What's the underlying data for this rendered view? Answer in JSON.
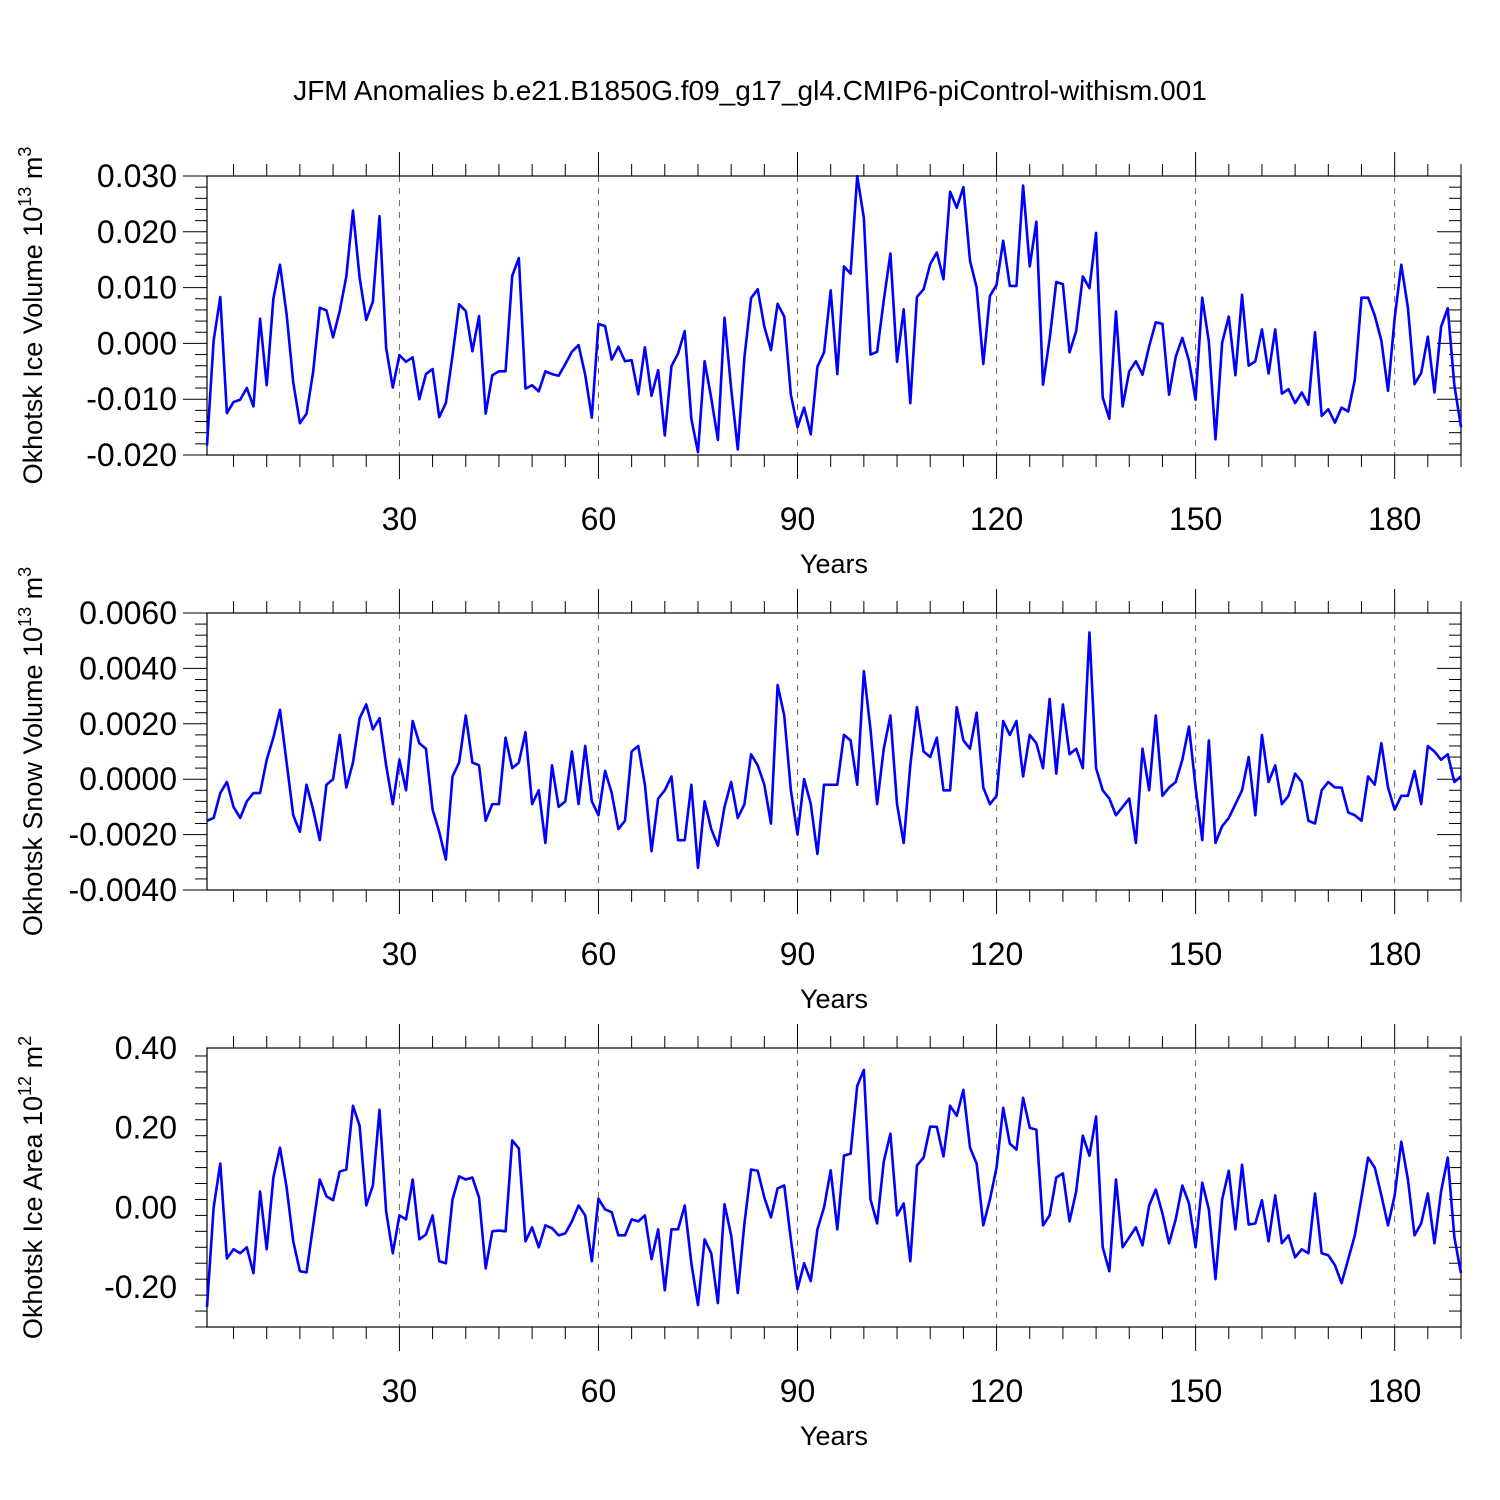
{
  "title": "JFM Anomalies b.e21.B1850G.f09_g17_gl4.CMIP6-piControl-withism.001",
  "chart_data": [
    {
      "type": "line",
      "ylabel": "Okhotsk Ice Volume",
      "ylabel_unit": "10",
      "ylabel_exp": "13",
      "ylabel_unit2": "m",
      "ylabel_unit2_exp": "3",
      "xlabel": "Years",
      "xlim": [
        1,
        190
      ],
      "ylim": [
        -0.02,
        0.03
      ],
      "xticks": [
        30,
        60,
        90,
        120,
        150,
        180
      ],
      "xtick_labels": [
        "30",
        "60",
        "90",
        "120",
        "150",
        "180"
      ],
      "yticks": [
        -0.02,
        -0.01,
        0.0,
        0.01,
        0.02,
        0.03
      ],
      "ytick_labels": [
        "-0.020",
        "-0.010",
        "0.000",
        "0.010",
        "0.020",
        "0.030"
      ],
      "grid": "dashed vertical at major x ticks",
      "series": [
        {
          "name": "Okhotsk Ice Volume",
          "values": [
            -0.0183,
            0.0005,
            0.0083,
            -0.0125,
            -0.0105,
            -0.0101,
            -0.008,
            -0.0113,
            0.0044,
            -0.0075,
            0.008,
            0.0141,
            0.0052,
            -0.007,
            -0.0143,
            -0.0126,
            -0.0051,
            0.0064,
            0.0059,
            0.0011,
            0.0058,
            0.012,
            0.0238,
            0.0118,
            0.0042,
            0.0075,
            0.0228,
            -0.0008,
            -0.0079,
            -0.0021,
            -0.0033,
            -0.0025,
            -0.01,
            -0.0055,
            -0.0046,
            -0.0132,
            -0.0107,
            -0.0022,
            0.007,
            0.0058,
            -0.0014,
            0.0049,
            -0.0126,
            -0.0057,
            -0.005,
            -0.005,
            0.0121,
            0.0153,
            -0.0081,
            -0.0075,
            -0.0086,
            -0.005,
            -0.0055,
            -0.0058,
            -0.0037,
            -0.0015,
            -0.0003,
            -0.0056,
            -0.0133,
            0.0035,
            0.0031,
            -0.0029,
            -0.0006,
            -0.0032,
            -0.003,
            -0.0091,
            -0.0007,
            -0.0094,
            -0.0048,
            -0.0165,
            -0.0041,
            -0.0018,
            0.0022,
            -0.0135,
            -0.0195,
            -0.0032,
            -0.0098,
            -0.0173,
            0.0046,
            -0.0081,
            -0.019,
            -0.0025,
            0.0081,
            0.0097,
            0.003,
            -0.0012,
            0.0071,
            0.0048,
            -0.0092,
            -0.015,
            -0.0115,
            -0.0163,
            -0.0042,
            -0.0016,
            0.0095,
            -0.0055,
            0.0138,
            0.0125,
            0.03,
            0.0225,
            -0.002,
            -0.0015,
            0.0077,
            0.0161,
            -0.0033,
            0.0061,
            -0.0107,
            0.0083,
            0.0097,
            0.0142,
            0.0163,
            0.0115,
            0.0272,
            0.0243,
            0.028,
            0.0148,
            0.01,
            -0.0037,
            0.0085,
            0.0105,
            0.0184,
            0.0103,
            0.0103,
            0.0283,
            0.0138,
            0.0218,
            -0.0074,
            0.0008,
            0.011,
            0.0106,
            -0.0016,
            0.0022,
            0.012,
            0.0099,
            0.0198,
            -0.0097,
            -0.0135,
            0.0057,
            -0.0113,
            -0.005,
            -0.0032,
            -0.0056,
            -0.0005,
            0.0038,
            0.0035,
            -0.0092,
            -0.0024,
            0.001,
            -0.0031,
            -0.0101,
            0.0082,
            0.0003,
            -0.0172,
            0.0001,
            0.0048,
            -0.0057,
            0.0087,
            -0.004,
            -0.0032,
            0.0025,
            -0.0054,
            0.0025,
            -0.009,
            -0.0082,
            -0.0107,
            -0.0088,
            -0.011,
            0.002,
            -0.013,
            -0.0118,
            -0.0142,
            -0.0115,
            -0.0122,
            -0.0065,
            0.0082,
            0.0082,
            0.005,
            0.0005,
            -0.0085,
            0.0045,
            0.0141,
            0.0064,
            -0.0073,
            -0.0053,
            0.0012,
            -0.0088,
            0.003,
            0.0063,
            -0.0075,
            -0.015
          ]
        }
      ]
    },
    {
      "type": "line",
      "ylabel": "Okhotsk Snow Volume",
      "ylabel_unit": "10",
      "ylabel_exp": "13",
      "ylabel_unit2": "m",
      "ylabel_unit2_exp": "3",
      "xlabel": "Years",
      "xlim": [
        1,
        190
      ],
      "ylim": [
        -0.004,
        0.006
      ],
      "xticks": [
        30,
        60,
        90,
        120,
        150,
        180
      ],
      "xtick_labels": [
        "30",
        "60",
        "90",
        "120",
        "150",
        "180"
      ],
      "yticks": [
        -0.004,
        -0.002,
        0.0,
        0.002,
        0.004,
        0.006
      ],
      "ytick_labels": [
        "-0.0040",
        "-0.0020",
        "0.0000",
        "0.0020",
        "0.0040",
        "0.0060"
      ],
      "grid": "dashed vertical at major x ticks",
      "series": [
        {
          "name": "Okhotsk Snow Volume",
          "values": [
            -0.0015,
            -0.0014,
            -0.0005,
            -0.0001,
            -0.001,
            -0.0014,
            -0.0008,
            -0.0005,
            -0.0005,
            0.0007,
            0.0015,
            0.0025,
            0.0006,
            -0.0013,
            -0.0019,
            -0.0002,
            -0.0011,
            -0.0022,
            -0.0002,
            0.0,
            0.0016,
            -0.0003,
            0.0006,
            0.0022,
            0.0027,
            0.0018,
            0.0022,
            0.0005,
            -0.0009,
            0.0007,
            -0.0004,
            0.0021,
            0.0013,
            0.0011,
            -0.0011,
            -0.0019,
            -0.0029,
            0.0001,
            0.0006,
            0.0023,
            0.0006,
            0.0005,
            -0.0015,
            -0.0009,
            -0.0009,
            0.0015,
            0.0004,
            0.0006,
            0.0017,
            -0.0009,
            -0.0004,
            -0.0023,
            0.0005,
            -0.001,
            -0.0008,
            0.001,
            -0.0009,
            0.0012,
            -0.0008,
            -0.0013,
            0.0003,
            -0.0005,
            -0.0018,
            -0.0015,
            0.001,
            0.0012,
            -0.0002,
            -0.0026,
            -0.0007,
            -0.0004,
            0.0001,
            -0.0022,
            -0.0022,
            -0.0002,
            -0.0032,
            -0.0008,
            -0.0018,
            -0.0024,
            -0.001,
            -0.0001,
            -0.0014,
            -0.0009,
            0.0009,
            0.0005,
            -0.0002,
            -0.0016,
            0.0034,
            0.0023,
            -0.0004,
            -0.002,
            0.0,
            -0.0009,
            -0.0027,
            -0.0002,
            -0.0002,
            -0.0002,
            0.0016,
            0.0014,
            -0.0002,
            0.0039,
            0.0018,
            -0.0009,
            0.0011,
            0.0023,
            -0.0009,
            -0.0023,
            0.0005,
            0.0026,
            0.001,
            0.0008,
            0.0015,
            -0.0004,
            -0.0004,
            0.0026,
            0.0014,
            0.0011,
            0.0024,
            -0.0003,
            -0.0009,
            -0.0006,
            0.0021,
            0.0016,
            0.0021,
            0.0001,
            0.0016,
            0.0013,
            0.0004,
            0.0029,
            0.0002,
            0.0027,
            0.0009,
            0.0011,
            0.0004,
            0.0053,
            0.0004,
            -0.0004,
            -0.0007,
            -0.0013,
            -0.001,
            -0.0007,
            -0.0023,
            0.0011,
            -0.0004,
            0.0023,
            -0.0006,
            -0.0003,
            -0.0001,
            0.0007,
            0.0019,
            -0.0003,
            -0.0022,
            0.0014,
            -0.0023,
            -0.0017,
            -0.0014,
            -0.0009,
            -0.0004,
            0.0008,
            -0.0013,
            0.0016,
            -0.0001,
            0.0005,
            -0.0009,
            -0.0006,
            0.0002,
            -0.0001,
            -0.0015,
            -0.0016,
            -0.0004,
            -0.0001,
            -0.0003,
            -0.0003,
            -0.0012,
            -0.0013,
            -0.0015,
            0.0001,
            -0.0002,
            0.0013,
            -0.0003,
            -0.0011,
            -0.0006,
            -0.0006,
            0.0003,
            -0.0009,
            0.0012,
            0.001,
            0.0007,
            0.0009,
            -0.0001,
            0.0001
          ]
        }
      ]
    },
    {
      "type": "line",
      "ylabel": "Okhotsk Ice Area",
      "ylabel_unit": "10",
      "ylabel_exp": "12",
      "ylabel_unit2": "m",
      "ylabel_unit2_exp": "2",
      "xlabel": "Years",
      "xlim": [
        1,
        190
      ],
      "ylim": [
        -0.3,
        0.4
      ],
      "xticks": [
        30,
        60,
        90,
        120,
        150,
        180
      ],
      "xtick_labels": [
        "30",
        "60",
        "90",
        "120",
        "150",
        "180"
      ],
      "yticks": [
        -0.2,
        0.0,
        0.2,
        0.4
      ],
      "ytick_labels": [
        "-0.20",
        "0.00",
        "0.20",
        "0.40"
      ],
      "grid": "dashed vertical at major x ticks",
      "series": [
        {
          "name": "Okhotsk Ice Area",
          "values": [
            -0.25,
            0.0,
            0.11,
            -0.128,
            -0.105,
            -0.115,
            -0.1,
            -0.165,
            0.04,
            -0.105,
            0.075,
            0.15,
            0.05,
            -0.085,
            -0.16,
            -0.163,
            -0.045,
            0.07,
            0.028,
            0.018,
            0.09,
            0.095,
            0.255,
            0.205,
            0.005,
            0.055,
            0.245,
            -0.01,
            -0.115,
            -0.02,
            -0.03,
            0.07,
            -0.08,
            -0.068,
            -0.02,
            -0.135,
            -0.14,
            0.02,
            0.078,
            0.07,
            0.075,
            0.025,
            -0.153,
            -0.06,
            -0.058,
            -0.06,
            0.168,
            0.148,
            -0.085,
            -0.05,
            -0.1,
            -0.045,
            -0.052,
            -0.07,
            -0.065,
            -0.035,
            0.005,
            -0.02,
            -0.135,
            0.022,
            -0.005,
            -0.012,
            -0.07,
            -0.07,
            -0.03,
            -0.035,
            -0.02,
            -0.13,
            -0.055,
            -0.208,
            -0.055,
            -0.055,
            0.005,
            -0.14,
            -0.245,
            -0.08,
            -0.115,
            -0.24,
            0.008,
            -0.07,
            -0.215,
            -0.04,
            0.095,
            0.092,
            0.025,
            -0.025,
            0.048,
            0.055,
            -0.08,
            -0.205,
            -0.14,
            -0.185,
            -0.055,
            0.0,
            0.093,
            -0.055,
            0.13,
            0.135,
            0.305,
            0.345,
            0.02,
            -0.04,
            0.115,
            0.185,
            -0.02,
            0.01,
            -0.135,
            0.105,
            0.125,
            0.203,
            0.202,
            0.128,
            0.255,
            0.23,
            0.295,
            0.15,
            0.11,
            -0.045,
            0.02,
            0.1,
            0.25,
            0.16,
            0.145,
            0.275,
            0.2,
            0.195,
            -0.045,
            -0.02,
            0.075,
            0.085,
            -0.035,
            0.04,
            0.18,
            0.13,
            0.228,
            -0.1,
            -0.16,
            0.07,
            -0.1,
            -0.075,
            -0.05,
            -0.095,
            0.005,
            0.045,
            -0.015,
            -0.09,
            -0.03,
            0.055,
            0.01,
            -0.1,
            0.062,
            -0.005,
            -0.18,
            0.02,
            0.092,
            -0.055,
            0.107,
            -0.043,
            -0.04,
            0.018,
            -0.085,
            0.03,
            -0.09,
            -0.07,
            -0.125,
            -0.105,
            -0.115,
            0.035,
            -0.115,
            -0.12,
            -0.145,
            -0.19,
            -0.13,
            -0.07,
            0.025,
            0.125,
            0.1,
            0.03,
            -0.045,
            0.03,
            0.165,
            0.07,
            -0.07,
            -0.04,
            0.035,
            -0.09,
            0.04,
            0.125,
            -0.075,
            -0.165
          ]
        }
      ]
    }
  ]
}
